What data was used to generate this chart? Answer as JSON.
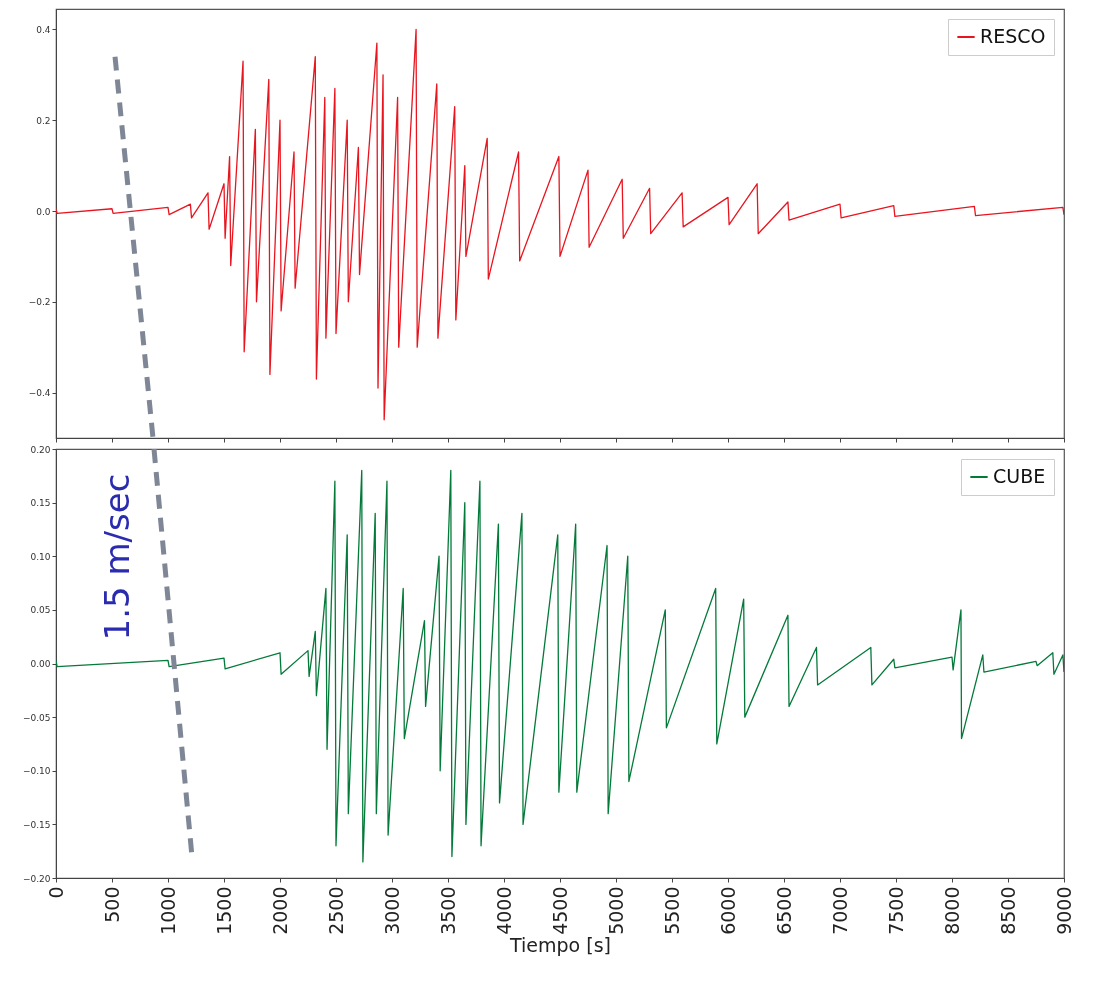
{
  "chart_data": [
    {
      "type": "line",
      "xlim": [
        0,
        9000
      ],
      "xticks": [
        0,
        500,
        1000,
        1500,
        2000,
        2500,
        3000,
        3500,
        4000,
        4500,
        5000,
        5500,
        6000,
        6500,
        7000,
        7500,
        8000,
        8500,
        9000
      ],
      "ylim": [
        -0.5,
        0.445
      ],
      "yticks": [
        {
          "value": -0.4,
          "label": "−0.4"
        },
        {
          "value": -0.2,
          "label": "−0.2"
        },
        {
          "value": 0,
          "label": "0.0"
        },
        0.2,
        0.4
      ],
      "tick_labels": "y",
      "legend": "top right",
      "grid": false,
      "series": [
        {
          "name": "RESCO",
          "color": "#e8151f",
          "x": [
            0,
            10,
            500,
            510,
            1000,
            1010,
            1200,
            1210,
            1357,
            1367,
            1500,
            1510,
            1550,
            1560,
            1670,
            1680,
            1780,
            1790,
            1900,
            1910,
            2000,
            2010,
            2125,
            2135,
            2315,
            2325,
            2400,
            2410,
            2490,
            2500,
            2600,
            2610,
            2700,
            2710,
            2865,
            2875,
            2920,
            2930,
            3050,
            3060,
            3215,
            3225,
            3400,
            3410,
            3560,
            3570,
            3650,
            3660,
            3850,
            3860,
            4130,
            4140,
            4490,
            4500,
            4750,
            4760,
            5055,
            5065,
            5300,
            5310,
            5590,
            5600,
            6000,
            6010,
            6260,
            6270,
            6535,
            6545,
            7000,
            7010,
            7480,
            7490,
            8200,
            8210,
            8990,
            9000
          ],
          "values": [
            0.005,
            -0.005,
            0.005,
            -0.005,
            0.008,
            -0.008,
            0.015,
            -0.015,
            0.04,
            -0.04,
            0.06,
            -0.06,
            0.12,
            -0.12,
            0.33,
            -0.31,
            0.18,
            -0.2,
            0.29,
            -0.36,
            0.2,
            -0.22,
            0.13,
            -0.17,
            0.34,
            -0.37,
            0.25,
            -0.28,
            0.27,
            -0.27,
            0.2,
            -0.2,
            0.14,
            -0.14,
            0.37,
            -0.39,
            0.3,
            -0.46,
            0.25,
            -0.3,
            0.4,
            -0.3,
            0.28,
            -0.28,
            0.23,
            -0.24,
            0.1,
            -0.1,
            0.16,
            -0.15,
            0.13,
            -0.11,
            0.12,
            -0.1,
            0.09,
            -0.08,
            0.07,
            -0.06,
            0.05,
            -0.05,
            0.04,
            -0.035,
            0.03,
            -0.03,
            0.06,
            -0.05,
            0.02,
            -0.02,
            0.015,
            -0.015,
            0.012,
            -0.012,
            0.01,
            -0.01,
            0.008,
            -0.008
          ]
        },
        {
          "type": "line",
          "color": "#7f8796",
          "line_style": "dashed",
          "x": [
            527,
            866
          ],
          "values": [
            0.34,
            -0.5
          ]
        }
      ]
    },
    {
      "type": "line",
      "xlabel": "Tiempo [s]",
      "xlim": [
        0,
        9000
      ],
      "xticks": [
        0,
        500,
        1000,
        1500,
        2000,
        2500,
        3000,
        3500,
        4000,
        4500,
        5000,
        5500,
        6000,
        6500,
        7000,
        7500,
        8000,
        8500,
        9000
      ],
      "ylim": [
        -0.2,
        0.2
      ],
      "yticks": [
        {
          "value": -0.2,
          "label": "−0.20"
        },
        {
          "value": -0.15,
          "label": "−0.15"
        },
        {
          "value": -0.1,
          "label": "−0.10"
        },
        {
          "value": -0.05,
          "label": "−0.05"
        },
        {
          "value": 0,
          "label": "0.00"
        },
        {
          "value": 0.05,
          "label": "0.05"
        },
        {
          "value": 0.1,
          "label": "0.10"
        },
        {
          "value": 0.15,
          "label": "0.15"
        },
        {
          "value": 0.2,
          "label": "0.20"
        }
      ],
      "legend": "top right",
      "grid": false,
      "annotations": [
        "1.5 m/sec"
      ],
      "series": [
        {
          "name": "CUBE",
          "color": "#047a3a",
          "x": [
            0,
            10,
            1000,
            1010,
            1500,
            1510,
            2000,
            2010,
            2250,
            2260,
            2315,
            2325,
            2410,
            2420,
            2490,
            2500,
            2600,
            2610,
            2730,
            2740,
            2850,
            2860,
            2955,
            2965,
            3100,
            3110,
            3290,
            3300,
            3420,
            3430,
            3525,
            3535,
            3650,
            3660,
            3785,
            3795,
            3950,
            3960,
            4160,
            4170,
            4480,
            4490,
            4640,
            4650,
            4920,
            4930,
            5105,
            5115,
            5440,
            5450,
            5890,
            5900,
            6140,
            6150,
            6535,
            6545,
            6790,
            6800,
            7275,
            7285,
            7480,
            7490,
            8000,
            8010,
            8080,
            8085,
            8275,
            8285,
            8750,
            8760,
            8900,
            8910,
            8990,
            9000
          ],
          "values": [
            0.003,
            -0.003,
            0.003,
            -0.003,
            0.005,
            -0.005,
            0.01,
            -0.01,
            0.012,
            -0.012,
            0.03,
            -0.03,
            0.07,
            -0.08,
            0.17,
            -0.17,
            0.12,
            -0.14,
            0.18,
            -0.185,
            0.14,
            -0.14,
            0.17,
            -0.16,
            0.07,
            -0.07,
            0.04,
            -0.04,
            0.1,
            -0.1,
            0.18,
            -0.18,
            0.15,
            -0.15,
            0.17,
            -0.17,
            0.13,
            -0.13,
            0.14,
            -0.15,
            0.12,
            -0.12,
            0.13,
            -0.12,
            0.11,
            -0.14,
            0.1,
            -0.11,
            0.05,
            -0.06,
            0.07,
            -0.075,
            0.06,
            -0.05,
            0.045,
            -0.04,
            0.015,
            -0.02,
            0.015,
            -0.02,
            0.004,
            -0.004,
            0.006,
            -0.006,
            0.05,
            -0.07,
            0.008,
            -0.008,
            0.002,
            -0.002,
            0.01,
            -0.01,
            0.008,
            -0.008
          ]
        },
        {
          "type": "line",
          "color": "#7f8796",
          "line_style": "dashed",
          "x": [
            875,
            1214
          ],
          "values": [
            0.2,
            -0.18
          ]
        }
      ]
    }
  ]
}
